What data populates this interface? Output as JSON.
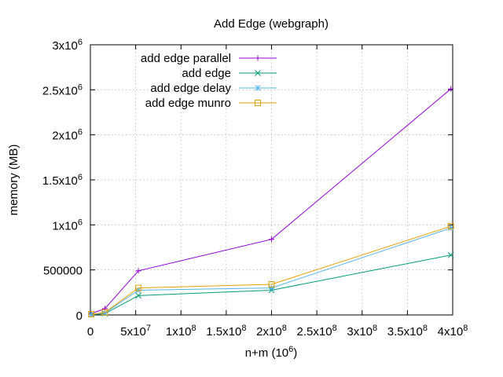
{
  "chart_data": {
    "type": "line",
    "title": "Add Edge (webgraph)",
    "xlabel": {
      "base": "n+m (10",
      "exp": "6",
      "tail": ")"
    },
    "ylabel": "memory (MB)",
    "xlim": [
      0,
      400000000
    ],
    "ylim": [
      0,
      3000000
    ],
    "grid": true,
    "legend_position": "top-left",
    "x_ticks": [
      {
        "value": 0,
        "label": "0"
      },
      {
        "value": 50000000,
        "mant": "5x10",
        "exp": "7"
      },
      {
        "value": 100000000,
        "mant": "1x10",
        "exp": "8"
      },
      {
        "value": 150000000,
        "mant": "1.5x10",
        "exp": "8"
      },
      {
        "value": 200000000,
        "mant": "2x10",
        "exp": "8"
      },
      {
        "value": 250000000,
        "mant": "2.5x10",
        "exp": "8"
      },
      {
        "value": 300000000,
        "mant": "3x10",
        "exp": "8"
      },
      {
        "value": 350000000,
        "mant": "3.5x10",
        "exp": "8"
      },
      {
        "value": 400000000,
        "mant": "4x10",
        "exp": "8"
      }
    ],
    "y_ticks": [
      {
        "value": 0,
        "label": "0"
      },
      {
        "value": 500000,
        "label": "500000"
      },
      {
        "value": 1000000,
        "mant": "1x10",
        "exp": "6"
      },
      {
        "value": 1500000,
        "mant": "1.5x10",
        "exp": "6"
      },
      {
        "value": 2000000,
        "mant": "2x10",
        "exp": "6"
      },
      {
        "value": 2500000,
        "mant": "2.5x10",
        "exp": "6"
      },
      {
        "value": 3000000,
        "mant": "3x10",
        "exp": "6"
      }
    ],
    "series": [
      {
        "name": "add edge parallel",
        "color": "#9400d3",
        "marker": "plus",
        "points": [
          [
            1000000,
            15000
          ],
          [
            16000000,
            70000
          ],
          [
            53000000,
            490000
          ],
          [
            200000000,
            840000
          ],
          [
            398000000,
            2510000
          ]
        ]
      },
      {
        "name": "add edge",
        "color": "#009e73",
        "marker": "cross",
        "points": [
          [
            1000000,
            3000
          ],
          [
            16000000,
            15000
          ],
          [
            53000000,
            215000
          ],
          [
            200000000,
            275000
          ],
          [
            398000000,
            665000
          ]
        ]
      },
      {
        "name": "add edge delay",
        "color": "#56b4e9",
        "marker": "star",
        "points": [
          [
            1000000,
            5000
          ],
          [
            16000000,
            22000
          ],
          [
            53000000,
            275000
          ],
          [
            200000000,
            300000
          ],
          [
            398000000,
            965000
          ]
        ]
      },
      {
        "name": "add edge munro",
        "color": "#e69f00",
        "marker": "square",
        "points": [
          [
            1000000,
            8000
          ],
          [
            16000000,
            28000
          ],
          [
            53000000,
            300000
          ],
          [
            200000000,
            340000
          ],
          [
            398000000,
            985000
          ]
        ]
      }
    ]
  }
}
